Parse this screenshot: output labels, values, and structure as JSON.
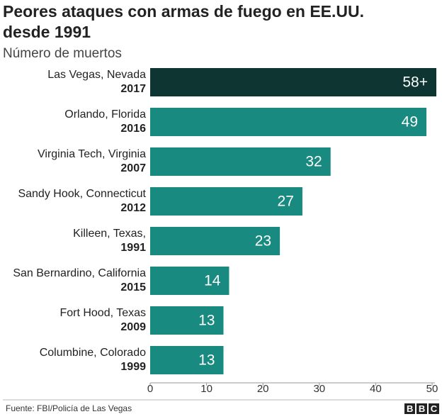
{
  "chart_data": {
    "type": "bar",
    "orientation": "horizontal",
    "title": [
      "Peores ataques con armas de fuego en EE.UU.",
      "desde 1991"
    ],
    "subtitle": "Número de muertos",
    "categories": [
      "Las Vegas, Nevada",
      "Orlando, Florida",
      "Virginia Tech, Virginia",
      "Sandy Hook, Connecticut",
      "Killeen, Texas,",
      "San Bernardino, California",
      "Fort Hood, Texas",
      "Columbine, Colorado"
    ],
    "years": [
      "2017",
      "2016",
      "2007",
      "2012",
      "1991",
      "2015",
      "2009",
      "1999"
    ],
    "values": [
      58,
      49,
      32,
      27,
      23,
      14,
      13,
      13
    ],
    "value_labels": [
      "58+",
      "49",
      "32",
      "27",
      "23",
      "14",
      "13",
      "13"
    ],
    "colors": [
      "#0e3532",
      "#188a80",
      "#188a80",
      "#188a80",
      "#188a80",
      "#188a80",
      "#188a80",
      "#188a80"
    ],
    "xlim": [
      0,
      50
    ],
    "xticks": [
      0,
      10,
      20,
      30,
      40,
      50
    ],
    "source": "Fuente: FBI/Policía de Las Vegas",
    "logo": "BBC"
  }
}
